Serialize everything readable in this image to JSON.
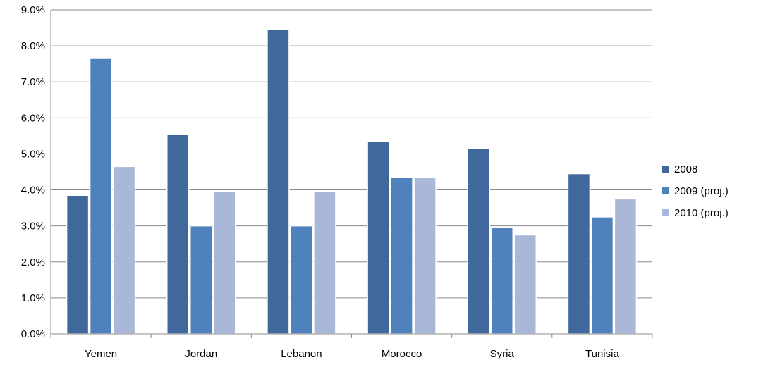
{
  "chart_data": {
    "type": "bar",
    "title": "",
    "xlabel": "",
    "ylabel": "",
    "ylim": [
      0,
      9
    ],
    "yticks": [
      "0.0%",
      "1.0%",
      "2.0%",
      "3.0%",
      "4.0%",
      "5.0%",
      "6.0%",
      "7.0%",
      "8.0%",
      "9.0%"
    ],
    "grid": true,
    "legend_position": "right",
    "categories": [
      "Yemen",
      "Jordan",
      "Lebanon",
      "Morocco",
      "Syria",
      "Tunisia"
    ],
    "series": [
      {
        "name": "2008",
        "color": "#41689C",
        "values": [
          3.85,
          5.55,
          8.45,
          5.35,
          5.15,
          4.45
        ]
      },
      {
        "name": "2009 (proj.)",
        "color": "#4F81BD",
        "values": [
          7.65,
          3.0,
          3.0,
          4.35,
          2.95,
          3.25
        ]
      },
      {
        "name": "2010 (proj.)",
        "color": "#A9B8D8",
        "values": [
          4.65,
          3.95,
          3.95,
          4.35,
          2.75,
          3.75
        ]
      }
    ]
  }
}
